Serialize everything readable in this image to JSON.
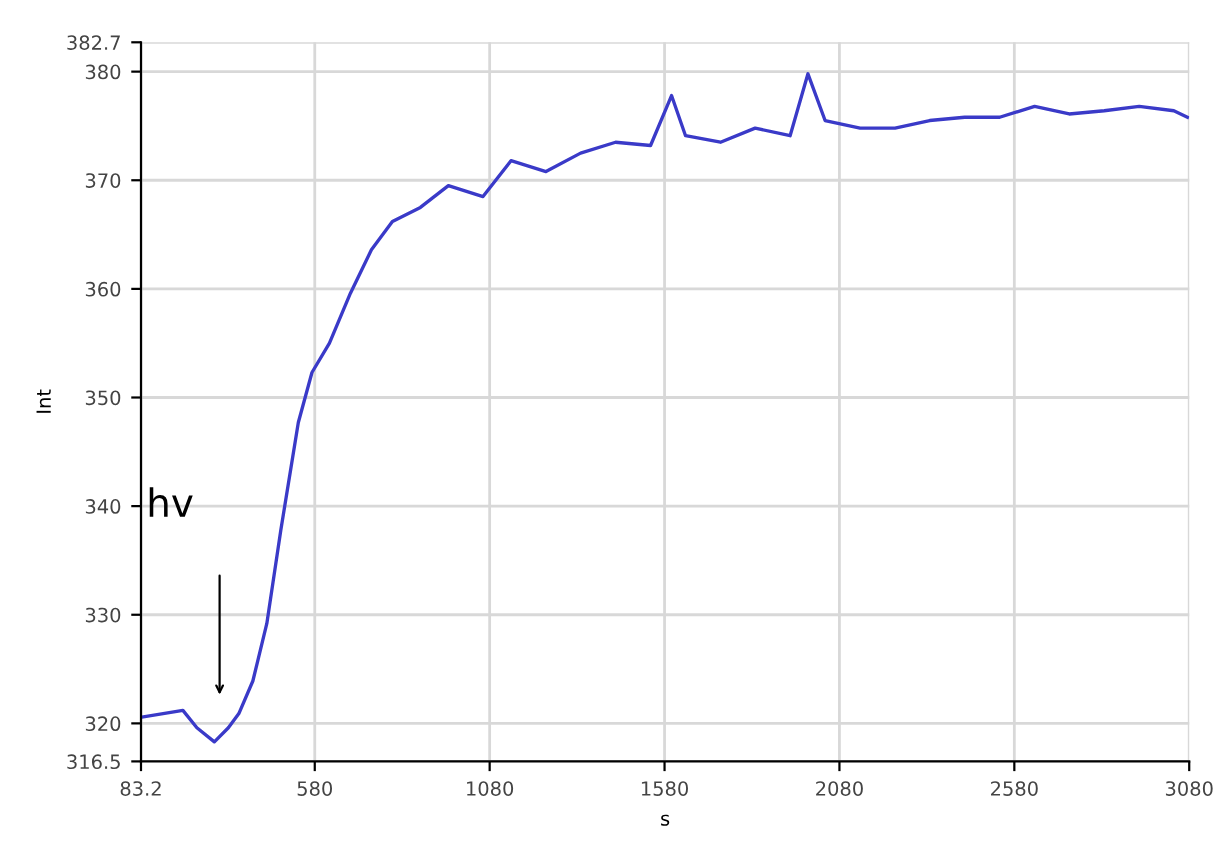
{
  "chart_data": {
    "type": "line",
    "xlabel": "s",
    "ylabel": "Int",
    "x": [
      90,
      203,
      243,
      293,
      333,
      363,
      403,
      443,
      483,
      533,
      572,
      622,
      682,
      742,
      802,
      882,
      962,
      1061,
      1141,
      1241,
      1340,
      1440,
      1540,
      1600,
      1640,
      1740,
      1839,
      1939,
      1990,
      2039,
      2139,
      2239,
      2338,
      2438,
      2538,
      2638,
      2737,
      2837,
      2937,
      3036,
      3075
    ],
    "series": [
      {
        "color": "#3a3ac8",
        "values": [
          320.6,
          321.2,
          319.6,
          318.3,
          319.6,
          320.9,
          323.9,
          329.2,
          337.8,
          347.7,
          352.3,
          355.0,
          359.6,
          363.6,
          366.2,
          367.5,
          369.5,
          368.5,
          371.8,
          370.8,
          372.5,
          373.5,
          373.2,
          377.8,
          374.1,
          373.5,
          374.8,
          374.1,
          379.8,
          375.5,
          374.8,
          374.8,
          375.5,
          375.8,
          375.8,
          376.8,
          376.1,
          376.4,
          376.8,
          376.4,
          375.8
        ]
      }
    ],
    "xlim": [
      83.2,
      3080
    ],
    "xticks": [
      83.2,
      580,
      1080,
      1580,
      2080,
      2580,
      3080
    ],
    "ylim": [
      316.5,
      382.7
    ],
    "yticks": [
      316.5,
      320,
      330,
      340,
      350,
      360,
      370,
      380,
      382.7
    ],
    "grid": true,
    "marker": "none",
    "line_style": "solid",
    "annotations": [
      "hv"
    ]
  }
}
